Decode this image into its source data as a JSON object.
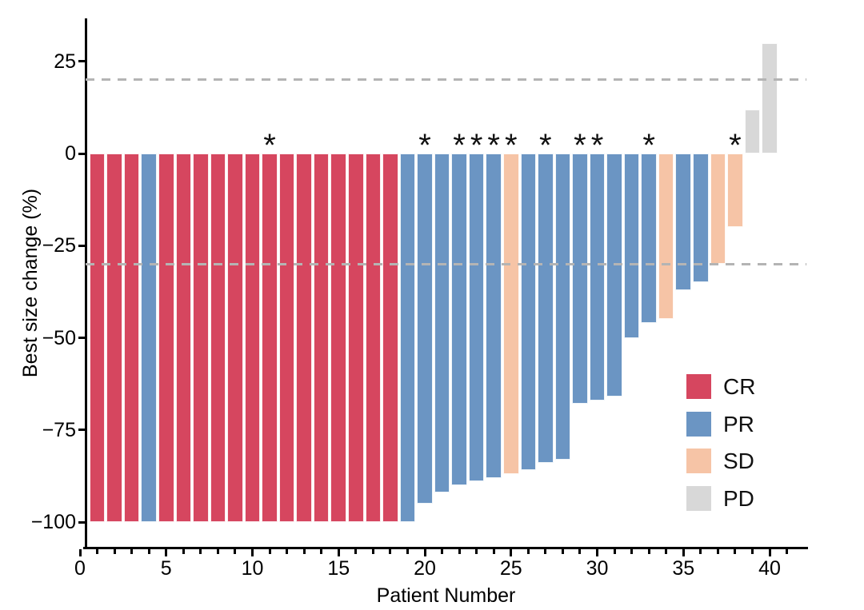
{
  "figure": {
    "kind": "tumor response waterfall plot",
    "background": "#ffffff",
    "text_color": "#000000",
    "axis_color": "#000000",
    "dashed_line_color": "#b4b4b4"
  },
  "chart_data": {
    "type": "bar",
    "subtype": "waterfall",
    "title": "",
    "xlabel": "Patient Number",
    "ylabel": "Best size change (%)",
    "xlim": [
      0,
      41
    ],
    "ylim": [
      -107,
      36
    ],
    "x_ticks": [
      0,
      5,
      10,
      15,
      20,
      25,
      30,
      35,
      40
    ],
    "x_minor_tick_step": 1,
    "x_minor_tick_range": [
      0,
      41
    ],
    "y_ticks": [
      25,
      0,
      -25,
      -50,
      -75,
      -100
    ],
    "y_tick_labels": [
      "25",
      "0",
      "−25",
      "−50",
      "−75",
      "−100"
    ],
    "reference_lines": [
      20,
      -30
    ],
    "grid": false,
    "annotation_symbol": "*",
    "starred_patients": [
      11,
      20,
      22,
      23,
      24,
      25,
      27,
      29,
      30,
      33,
      38
    ],
    "legend_position": "inside-right",
    "legend": [
      {
        "label": "CR",
        "color": "#D6465F"
      },
      {
        "label": "PR",
        "color": "#6B95C3"
      },
      {
        "label": "SD",
        "color": "#F6C4A6"
      },
      {
        "label": "PD",
        "color": "#D8D8D8"
      }
    ],
    "patients": [
      {
        "n": 1,
        "change": -100,
        "response": "CR",
        "star": false
      },
      {
        "n": 2,
        "change": -100,
        "response": "CR",
        "star": false
      },
      {
        "n": 3,
        "change": -100,
        "response": "CR",
        "star": false
      },
      {
        "n": 4,
        "change": -100,
        "response": "PR",
        "star": false
      },
      {
        "n": 5,
        "change": -100,
        "response": "CR",
        "star": false
      },
      {
        "n": 6,
        "change": -100,
        "response": "CR",
        "star": false
      },
      {
        "n": 7,
        "change": -100,
        "response": "CR",
        "star": false
      },
      {
        "n": 8,
        "change": -100,
        "response": "CR",
        "star": false
      },
      {
        "n": 9,
        "change": -100,
        "response": "CR",
        "star": false
      },
      {
        "n": 10,
        "change": -100,
        "response": "CR",
        "star": false
      },
      {
        "n": 11,
        "change": -100,
        "response": "CR",
        "star": true
      },
      {
        "n": 12,
        "change": -100,
        "response": "CR",
        "star": false
      },
      {
        "n": 13,
        "change": -100,
        "response": "CR",
        "star": false
      },
      {
        "n": 14,
        "change": -100,
        "response": "CR",
        "star": false
      },
      {
        "n": 15,
        "change": -100,
        "response": "CR",
        "star": false
      },
      {
        "n": 16,
        "change": -100,
        "response": "CR",
        "star": false
      },
      {
        "n": 17,
        "change": -100,
        "response": "CR",
        "star": false
      },
      {
        "n": 18,
        "change": -100,
        "response": "CR",
        "star": false
      },
      {
        "n": 19,
        "change": -100,
        "response": "PR",
        "star": false
      },
      {
        "n": 20,
        "change": -95,
        "response": "PR",
        "star": true
      },
      {
        "n": 21,
        "change": -92,
        "response": "PR",
        "star": false
      },
      {
        "n": 22,
        "change": -90,
        "response": "PR",
        "star": true
      },
      {
        "n": 23,
        "change": -89,
        "response": "PR",
        "star": true
      },
      {
        "n": 24,
        "change": -88,
        "response": "PR",
        "star": true
      },
      {
        "n": 25,
        "change": -87,
        "response": "SD",
        "star": true
      },
      {
        "n": 26,
        "change": -86,
        "response": "PR",
        "star": false
      },
      {
        "n": 27,
        "change": -84,
        "response": "PR",
        "star": true
      },
      {
        "n": 28,
        "change": -83,
        "response": "PR",
        "star": false
      },
      {
        "n": 29,
        "change": -68,
        "response": "PR",
        "star": true
      },
      {
        "n": 30,
        "change": -67,
        "response": "PR",
        "star": true
      },
      {
        "n": 31,
        "change": -66,
        "response": "PR",
        "star": false
      },
      {
        "n": 32,
        "change": -50,
        "response": "PR",
        "star": false
      },
      {
        "n": 33,
        "change": -46,
        "response": "PR",
        "star": true
      },
      {
        "n": 34,
        "change": -45,
        "response": "SD",
        "star": false
      },
      {
        "n": 35,
        "change": -37,
        "response": "PR",
        "star": false
      },
      {
        "n": 36,
        "change": -35,
        "response": "PR",
        "star": false
      },
      {
        "n": 37,
        "change": -30,
        "response": "SD",
        "star": false
      },
      {
        "n": 38,
        "change": -20,
        "response": "SD",
        "star": true
      },
      {
        "n": 39,
        "change": 12,
        "response": "PD",
        "star": false
      },
      {
        "n": 40,
        "change": 30,
        "response": "PD",
        "star": false
      }
    ]
  }
}
